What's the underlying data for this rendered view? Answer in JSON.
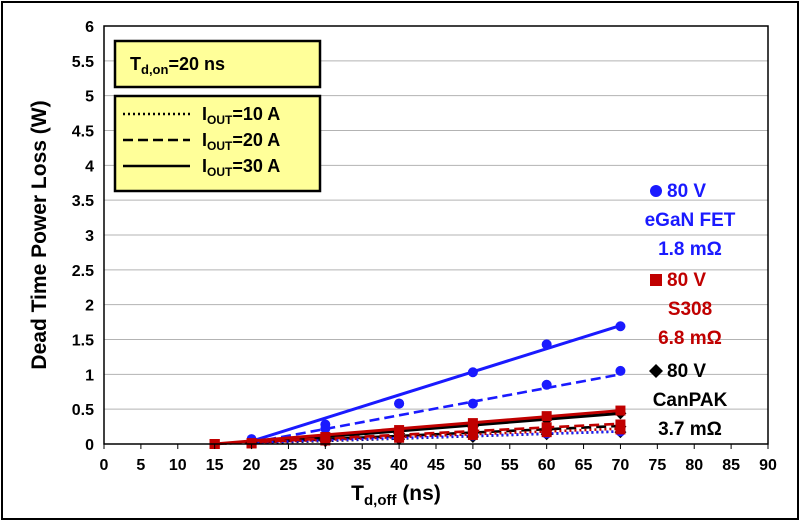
{
  "chart_data": {
    "type": "scatter",
    "xlabel": {
      "main": "T",
      "sub": "d,off",
      "tail": " (ns)"
    },
    "ylabel": "Dead Time Power Loss (W)",
    "xlim": [
      0,
      90
    ],
    "ylim": [
      0,
      6
    ],
    "x_ticks": [
      "0",
      "5",
      "10",
      "15",
      "20",
      "25",
      "30",
      "35",
      "40",
      "45",
      "50",
      "55",
      "60",
      "65",
      "70",
      "75",
      "80",
      "85",
      "90"
    ],
    "y_ticks": [
      "0",
      "0.5",
      "1",
      "1.5",
      "2",
      "2.5",
      "3",
      "3.5",
      "4",
      "4.5",
      "5",
      "5.5",
      "6"
    ],
    "grid": "horizontal",
    "condition_box": {
      "main": "T",
      "sub": "d,on",
      "tail": "=20 ns"
    },
    "legend": [
      {
        "pre": "I",
        "sub": "OUT",
        "tail": "=10 A",
        "dash": "dotted"
      },
      {
        "pre": "I",
        "sub": "OUT",
        "tail": "=20 A",
        "dash": "dashed"
      },
      {
        "pre": "I",
        "sub": "OUT",
        "tail": "=30 A",
        "dash": "solid"
      }
    ],
    "devices": [
      {
        "color": "#1a1aff",
        "marker": "circle",
        "lines": [
          "80 V",
          "eGaN FET",
          "1.8 mΩ"
        ],
        "series": [
          {
            "current": "10 A",
            "dash": "dotted",
            "x": [
              20,
              30,
              40,
              50,
              60,
              70
            ],
            "y": [
              0.02,
              0.06,
              0.09,
              0.12,
              0.15,
              0.18
            ],
            "fit": [
              [
                20,
                0.02
              ],
              [
                70,
                0.18
              ]
            ]
          },
          {
            "current": "20 A",
            "dash": "dashed",
            "x": [
              20,
              30,
              40,
              50,
              60,
              70
            ],
            "y": [
              0.05,
              0.22,
              0.58,
              0.58,
              0.85,
              1.05
            ],
            "fit": [
              [
                20,
                0.02
              ],
              [
                70,
                1.0
              ]
            ]
          },
          {
            "current": "30 A",
            "dash": "solid",
            "x": [
              20,
              30,
              40,
              50,
              60,
              70
            ],
            "y": [
              0.07,
              0.28,
              0.58,
              1.03,
              1.43,
              1.69
            ],
            "fit": [
              [
                20,
                0.04
              ],
              [
                70,
                1.7
              ]
            ]
          }
        ]
      },
      {
        "color": "#c00000",
        "marker": "square",
        "lines": [
          "80 V",
          "S308",
          "6.8 mΩ"
        ],
        "series": [
          {
            "current": "10 A",
            "dash": "dotted",
            "x": [
              15,
              20,
              30,
              40,
              50,
              60,
              70
            ],
            "y": [
              0.0,
              0.01,
              0.05,
              0.09,
              0.13,
              0.17,
              0.21
            ],
            "fit": [
              [
                15,
                0.0
              ],
              [
                70,
                0.22
              ]
            ]
          },
          {
            "current": "20 A",
            "dash": "dashed",
            "x": [
              15,
              20,
              30,
              40,
              50,
              60,
              70
            ],
            "y": [
              0.0,
              0.01,
              0.07,
              0.13,
              0.19,
              0.24,
              0.28
            ],
            "fit": [
              [
                15,
                0.0
              ],
              [
                70,
                0.29
              ]
            ]
          },
          {
            "current": "30 A",
            "dash": "solid",
            "x": [
              15,
              20,
              30,
              40,
              50,
              60,
              70
            ],
            "y": [
              0.0,
              0.01,
              0.1,
              0.2,
              0.3,
              0.4,
              0.48
            ],
            "fit": [
              [
                15,
                0.0
              ],
              [
                70,
                0.48
              ]
            ]
          }
        ]
      },
      {
        "color": "#000000",
        "marker": "diamond",
        "lines": [
          "80 V",
          "CanPAK",
          "3.7 mΩ"
        ],
        "series": [
          {
            "current": "10 A",
            "dash": "dotted",
            "x": [
              20,
              30,
              40,
              50,
              60,
              70
            ],
            "y": [
              0.01,
              0.04,
              0.07,
              0.1,
              0.14,
              0.17
            ],
            "fit": [
              [
                20,
                0.01
              ],
              [
                70,
                0.18
              ]
            ]
          },
          {
            "current": "20 A",
            "dash": "dashed",
            "x": [
              20,
              30,
              40,
              50,
              60,
              70
            ],
            "y": [
              0.02,
              0.06,
              0.11,
              0.16,
              0.2,
              0.25
            ],
            "fit": [
              [
                20,
                0.02
              ],
              [
                70,
                0.26
              ]
            ]
          },
          {
            "current": "30 A",
            "dash": "solid",
            "x": [
              20,
              30,
              40,
              50,
              60,
              70
            ],
            "y": [
              0.02,
              0.08,
              0.15,
              0.25,
              0.35,
              0.44
            ],
            "fit": [
              [
                20,
                0.02
              ],
              [
                70,
                0.44
              ]
            ]
          }
        ]
      }
    ]
  }
}
